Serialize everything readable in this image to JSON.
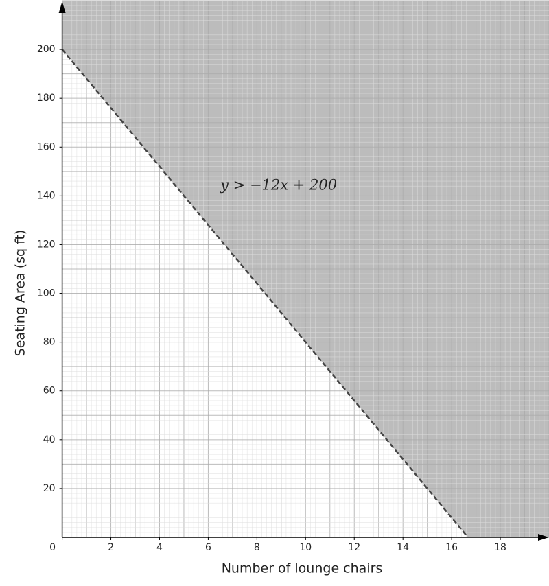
{
  "chart_data": {
    "type": "inequality",
    "x_label": "Number of lounge chairs",
    "y_label": "Seating Area (sq ft)",
    "annotation": "y > −12x + 200",
    "series": [
      {
        "name": "y = −12x + 200",
        "color": "#444444",
        "x": [
          0,
          16.67
        ],
        "values": [
          200,
          0
        ],
        "shade": "above",
        "shade_color": "#a0a0a0",
        "dashed": true
      }
    ],
    "xlim": [
      0,
      20
    ],
    "ylim": [
      0,
      220
    ],
    "xticks": [
      0,
      2,
      4,
      6,
      8,
      10,
      12,
      14,
      16,
      18
    ],
    "yticks": [
      20,
      40,
      60,
      80,
      100,
      120,
      140,
      160,
      180,
      200
    ],
    "grid": true,
    "xgrid_step": 1,
    "ygrid_step": 10,
    "minor_divisions": 5
  }
}
